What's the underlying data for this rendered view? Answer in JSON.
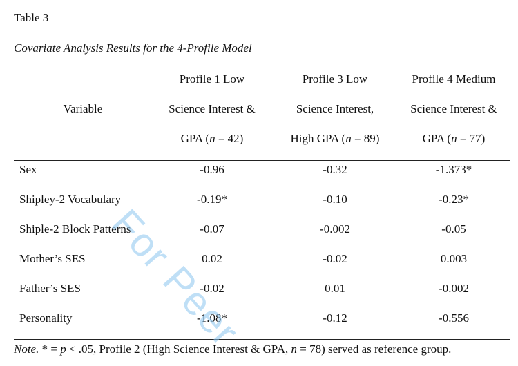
{
  "table_label": "Table 3",
  "table_title": "Covariate Analysis Results for the 4-Profile Model",
  "columns": {
    "variable": "Variable",
    "p1": [
      "Profile 1 Low",
      "Science Interest &",
      "GPA ("
    ],
    "p1_n": "n",
    "p1_tail": " = 42)",
    "p3": [
      "Profile 3 Low",
      "Science Interest,",
      "High GPA ("
    ],
    "p3_n": "n",
    "p3_tail": " = 89)",
    "p4": [
      "Profile 4 Medium",
      "Science Interest &",
      "GPA ("
    ],
    "p4_n": "n",
    "p4_tail": " = 77)"
  },
  "rows": [
    {
      "label": "Sex",
      "p1": "-0.96",
      "p3": "-0.32",
      "p4": "-1.373*"
    },
    {
      "label": "Shipley-2 Vocabulary",
      "p1": "-0.19*",
      "p3": "-0.10",
      "p4": "-0.23*"
    },
    {
      "label": "Shiple-2 Block Patterns",
      "p1": "-0.07",
      "p3": "-0.002",
      "p4": "-0.05"
    },
    {
      "label": "Mother’s SES",
      "p1": "0.02",
      "p3": "-0.02",
      "p4": "0.003"
    },
    {
      "label": "Father’s SES",
      "p1": "-0.02",
      "p3": "0.01",
      "p4": "-0.002"
    },
    {
      "label": "Personality",
      "p1": "-1.08*",
      "p3": "-0.12",
      "p4": "-0.556"
    }
  ],
  "note": {
    "prefix": "Note.",
    "body1": " * = ",
    "p": "p",
    "body2": " < .05, Profile 2 (High Science Interest & GPA, ",
    "n": "n",
    "body3": " = 78) served as reference group."
  },
  "watermark": "For Peer"
}
